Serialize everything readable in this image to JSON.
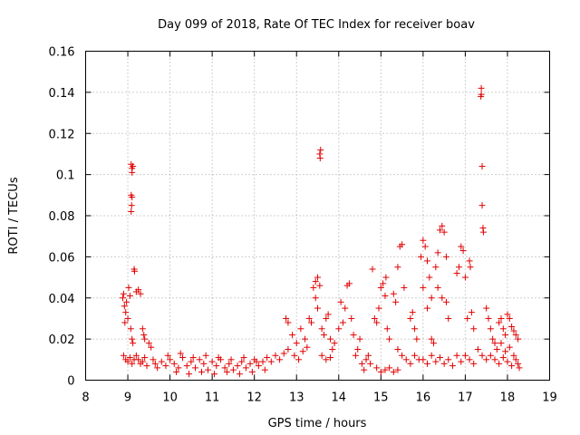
{
  "chart_data": {
    "type": "scatter",
    "title": "Day 099 of 2018, Rate Of TEC Index for receiver boav",
    "xlabel": "GPS time / hours",
    "ylabel": "ROTI / TECUs",
    "xlim": [
      8,
      19
    ],
    "ylim": [
      0,
      0.16
    ],
    "xticks": [
      "8",
      "9",
      "10",
      "11",
      "12",
      "13",
      "14",
      "15",
      "16",
      "17",
      "18",
      "19"
    ],
    "yticks": [
      "0",
      "0.02",
      "0.04",
      "0.06",
      "0.08",
      "0.1",
      "0.12",
      "0.14",
      "0.16"
    ],
    "grid": true,
    "marker": "plus",
    "color": "#e00000",
    "series": [
      {
        "name": "ROTI",
        "points": [
          [
            8.88,
            0.04
          ],
          [
            8.9,
            0.042
          ],
          [
            8.92,
            0.036
          ],
          [
            8.95,
            0.033
          ],
          [
            8.97,
            0.038
          ],
          [
            9.0,
            0.03
          ],
          [
            9.02,
            0.045
          ],
          [
            9.05,
            0.041
          ],
          [
            9.07,
            0.025
          ],
          [
            9.1,
            0.02
          ],
          [
            9.12,
            0.018
          ],
          [
            8.93,
            0.028
          ],
          [
            8.9,
            0.012
          ],
          [
            8.95,
            0.01
          ],
          [
            9.0,
            0.009
          ],
          [
            9.05,
            0.011
          ],
          [
            9.1,
            0.008
          ],
          [
            9.15,
            0.01
          ],
          [
            9.08,
            0.105
          ],
          [
            9.1,
            0.103
          ],
          [
            9.12,
            0.104
          ],
          [
            9.1,
            0.101
          ],
          [
            9.08,
            0.09
          ],
          [
            9.1,
            0.089
          ],
          [
            9.09,
            0.085
          ],
          [
            9.08,
            0.082
          ],
          [
            9.15,
            0.054
          ],
          [
            9.16,
            0.053
          ],
          [
            9.2,
            0.043
          ],
          [
            9.25,
            0.044
          ],
          [
            9.3,
            0.042
          ],
          [
            9.35,
            0.025
          ],
          [
            9.38,
            0.022
          ],
          [
            9.4,
            0.02
          ],
          [
            9.2,
            0.012
          ],
          [
            9.25,
            0.01
          ],
          [
            9.3,
            0.008
          ],
          [
            9.35,
            0.009
          ],
          [
            9.4,
            0.011
          ],
          [
            9.45,
            0.007
          ],
          [
            9.5,
            0.018
          ],
          [
            9.55,
            0.016
          ],
          [
            9.6,
            0.01
          ],
          [
            9.65,
            0.008
          ],
          [
            9.7,
            0.006
          ],
          [
            9.8,
            0.009
          ],
          [
            9.9,
            0.007
          ],
          [
            10.0,
            0.01
          ],
          [
            10.1,
            0.008
          ],
          [
            10.2,
            0.006
          ],
          [
            10.3,
            0.011
          ],
          [
            10.4,
            0.007
          ],
          [
            10.5,
            0.009
          ],
          [
            10.6,
            0.006
          ],
          [
            10.7,
            0.01
          ],
          [
            10.8,
            0.008
          ],
          [
            10.9,
            0.005
          ],
          [
            11.0,
            0.009
          ],
          [
            11.1,
            0.007
          ],
          [
            11.2,
            0.01
          ],
          [
            11.3,
            0.006
          ],
          [
            11.4,
            0.008
          ],
          [
            11.5,
            0.005
          ],
          [
            11.6,
            0.007
          ],
          [
            11.7,
            0.009
          ],
          [
            11.8,
            0.006
          ],
          [
            11.9,
            0.008
          ],
          [
            12.0,
            0.01
          ],
          [
            12.1,
            0.007
          ],
          [
            12.2,
            0.009
          ],
          [
            9.95,
            0.012
          ],
          [
            10.25,
            0.013
          ],
          [
            10.55,
            0.011
          ],
          [
            10.85,
            0.012
          ],
          [
            11.15,
            0.011
          ],
          [
            11.45,
            0.01
          ],
          [
            11.75,
            0.011
          ],
          [
            12.05,
            0.009
          ],
          [
            10.15,
            0.004
          ],
          [
            10.45,
            0.003
          ],
          [
            10.75,
            0.004
          ],
          [
            11.05,
            0.003
          ],
          [
            11.35,
            0.004
          ],
          [
            11.65,
            0.003
          ],
          [
            11.95,
            0.004
          ],
          [
            12.25,
            0.005
          ],
          [
            12.3,
            0.011
          ],
          [
            12.4,
            0.009
          ],
          [
            12.5,
            0.012
          ],
          [
            12.6,
            0.01
          ],
          [
            12.7,
            0.013
          ],
          [
            12.8,
            0.015
          ],
          [
            12.75,
            0.03
          ],
          [
            12.8,
            0.028
          ],
          [
            12.9,
            0.022
          ],
          [
            13.0,
            0.018
          ],
          [
            13.1,
            0.025
          ],
          [
            13.2,
            0.02
          ],
          [
            12.95,
            0.012
          ],
          [
            13.05,
            0.01
          ],
          [
            13.15,
            0.014
          ],
          [
            13.25,
            0.016
          ],
          [
            13.3,
            0.03
          ],
          [
            13.35,
            0.028
          ],
          [
            13.4,
            0.045
          ],
          [
            13.45,
            0.048
          ],
          [
            13.5,
            0.05
          ],
          [
            13.55,
            0.046
          ],
          [
            13.45,
            0.04
          ],
          [
            13.5,
            0.035
          ],
          [
            13.55,
            0.11
          ],
          [
            13.57,
            0.112
          ],
          [
            13.56,
            0.108
          ],
          [
            13.6,
            0.025
          ],
          [
            13.65,
            0.022
          ],
          [
            13.7,
            0.03
          ],
          [
            13.75,
            0.032
          ],
          [
            13.8,
            0.02
          ],
          [
            13.85,
            0.015
          ],
          [
            13.6,
            0.012
          ],
          [
            13.7,
            0.01
          ],
          [
            13.8,
            0.011
          ],
          [
            13.9,
            0.018
          ],
          [
            14.0,
            0.025
          ],
          [
            14.05,
            0.038
          ],
          [
            14.1,
            0.028
          ],
          [
            14.15,
            0.035
          ],
          [
            14.2,
            0.046
          ],
          [
            14.25,
            0.047
          ],
          [
            14.3,
            0.03
          ],
          [
            14.35,
            0.022
          ],
          [
            14.4,
            0.012
          ],
          [
            14.45,
            0.015
          ],
          [
            14.5,
            0.02
          ],
          [
            14.55,
            0.008
          ],
          [
            14.6,
            0.005
          ],
          [
            14.65,
            0.01
          ],
          [
            14.7,
            0.012
          ],
          [
            14.75,
            0.008
          ],
          [
            14.8,
            0.054
          ],
          [
            14.85,
            0.03
          ],
          [
            14.9,
            0.028
          ],
          [
            14.95,
            0.035
          ],
          [
            15.0,
            0.045
          ],
          [
            15.05,
            0.047
          ],
          [
            15.1,
            0.041
          ],
          [
            15.12,
            0.05
          ],
          [
            15.15,
            0.025
          ],
          [
            15.2,
            0.02
          ],
          [
            14.9,
            0.006
          ],
          [
            15.0,
            0.004
          ],
          [
            15.1,
            0.005
          ],
          [
            15.2,
            0.006
          ],
          [
            15.3,
            0.004
          ],
          [
            15.4,
            0.005
          ],
          [
            15.3,
            0.042
          ],
          [
            15.35,
            0.038
          ],
          [
            15.4,
            0.055
          ],
          [
            15.45,
            0.065
          ],
          [
            15.5,
            0.066
          ],
          [
            15.55,
            0.045
          ],
          [
            15.4,
            0.015
          ],
          [
            15.5,
            0.012
          ],
          [
            15.6,
            0.01
          ],
          [
            15.7,
            0.008
          ],
          [
            15.8,
            0.012
          ],
          [
            15.9,
            0.01
          ],
          [
            15.7,
            0.03
          ],
          [
            15.75,
            0.033
          ],
          [
            15.8,
            0.025
          ],
          [
            15.85,
            0.02
          ],
          [
            15.95,
            0.06
          ],
          [
            16.0,
            0.068
          ],
          [
            16.05,
            0.065
          ],
          [
            16.1,
            0.058
          ],
          [
            16.15,
            0.05
          ],
          [
            16.2,
            0.04
          ],
          [
            16.0,
            0.045
          ],
          [
            16.1,
            0.035
          ],
          [
            16.2,
            0.02
          ],
          [
            16.25,
            0.018
          ],
          [
            16.3,
            0.055
          ],
          [
            16.35,
            0.062
          ],
          [
            16.4,
            0.073
          ],
          [
            16.45,
            0.075
          ],
          [
            16.5,
            0.072
          ],
          [
            16.55,
            0.06
          ],
          [
            16.35,
            0.045
          ],
          [
            16.45,
            0.04
          ],
          [
            16.55,
            0.038
          ],
          [
            16.6,
            0.03
          ],
          [
            16.0,
            0.01
          ],
          [
            16.1,
            0.008
          ],
          [
            16.2,
            0.012
          ],
          [
            16.3,
            0.009
          ],
          [
            16.4,
            0.011
          ],
          [
            16.5,
            0.008
          ],
          [
            16.6,
            0.01
          ],
          [
            16.7,
            0.007
          ],
          [
            16.8,
            0.012
          ],
          [
            16.9,
            0.009
          ],
          [
            16.8,
            0.052
          ],
          [
            16.85,
            0.055
          ],
          [
            16.9,
            0.065
          ],
          [
            16.95,
            0.063
          ],
          [
            17.0,
            0.05
          ],
          [
            17.05,
            0.03
          ],
          [
            17.1,
            0.058
          ],
          [
            17.12,
            0.055
          ],
          [
            17.15,
            0.033
          ],
          [
            17.2,
            0.025
          ],
          [
            17.0,
            0.012
          ],
          [
            17.1,
            0.01
          ],
          [
            17.2,
            0.008
          ],
          [
            17.3,
            0.015
          ],
          [
            17.4,
            0.012
          ],
          [
            17.5,
            0.01
          ],
          [
            17.38,
            0.142
          ],
          [
            17.38,
            0.139
          ],
          [
            17.37,
            0.138
          ],
          [
            17.4,
            0.104
          ],
          [
            17.4,
            0.085
          ],
          [
            17.42,
            0.074
          ],
          [
            17.43,
            0.072
          ],
          [
            17.5,
            0.035
          ],
          [
            17.55,
            0.03
          ],
          [
            17.6,
            0.025
          ],
          [
            17.65,
            0.02
          ],
          [
            17.7,
            0.018
          ],
          [
            17.6,
            0.012
          ],
          [
            17.7,
            0.01
          ],
          [
            17.8,
            0.008
          ],
          [
            17.9,
            0.011
          ],
          [
            18.0,
            0.009
          ],
          [
            18.1,
            0.007
          ],
          [
            17.8,
            0.028
          ],
          [
            17.85,
            0.03
          ],
          [
            17.9,
            0.025
          ],
          [
            17.95,
            0.022
          ],
          [
            18.0,
            0.032
          ],
          [
            18.05,
            0.03
          ],
          [
            18.1,
            0.026
          ],
          [
            18.15,
            0.024
          ],
          [
            18.2,
            0.022
          ],
          [
            18.25,
            0.02
          ],
          [
            18.2,
            0.01
          ],
          [
            18.25,
            0.008
          ],
          [
            17.75,
            0.015
          ],
          [
            17.85,
            0.018
          ],
          [
            17.95,
            0.014
          ],
          [
            18.05,
            0.016
          ],
          [
            18.15,
            0.012
          ],
          [
            18.28,
            0.006
          ]
        ]
      }
    ]
  }
}
